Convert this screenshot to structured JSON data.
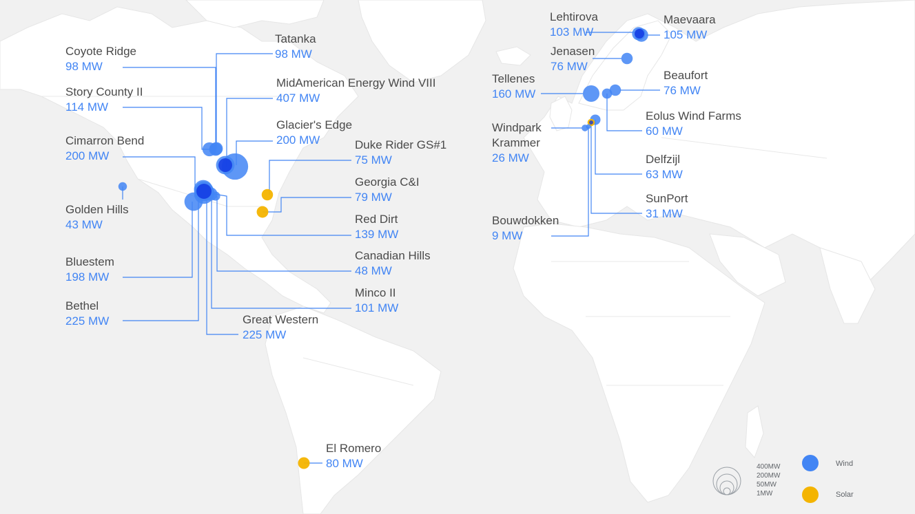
{
  "colors": {
    "wind": "#4285f4",
    "wind_dark": "#0b2fe0",
    "solar": "#f4b400",
    "land": "#ffffff",
    "water": "#f1f1f1",
    "line": "#4285f4"
  },
  "farms": [
    {
      "name": "Coyote Ridge",
      "mw": "98 MW",
      "type": "wind"
    },
    {
      "name": "Story County II",
      "mw": "114 MW",
      "type": "wind"
    },
    {
      "name": "Cimarron Bend",
      "mw": "200 MW",
      "type": "wind"
    },
    {
      "name": "Golden Hills",
      "mw": "43 MW",
      "type": "wind"
    },
    {
      "name": "Bluestem",
      "mw": "198 MW",
      "type": "wind"
    },
    {
      "name": "Bethel",
      "mw": "225 MW",
      "type": "wind"
    },
    {
      "name": "Tatanka",
      "mw": "98 MW",
      "type": "wind"
    },
    {
      "name": "MidAmerican Energy Wind VIII",
      "mw": "407 MW",
      "type": "wind"
    },
    {
      "name": "Glacier's Edge",
      "mw": "200 MW",
      "type": "wind"
    },
    {
      "name": "Duke Rider GS#1",
      "mw": "75 MW",
      "type": "solar"
    },
    {
      "name": "Georgia C&I",
      "mw": "79 MW",
      "type": "solar"
    },
    {
      "name": "Red Dirt",
      "mw": "139 MW",
      "type": "wind"
    },
    {
      "name": "Canadian Hills",
      "mw": "48 MW",
      "type": "wind"
    },
    {
      "name": "Minco II",
      "mw": "101 MW",
      "type": "wind"
    },
    {
      "name": "Great Western",
      "mw": "225 MW",
      "type": "wind"
    },
    {
      "name": "El Romero",
      "mw": "80 MW",
      "type": "solar"
    },
    {
      "name": "Lehtirova",
      "mw": "103 MW",
      "type": "wind"
    },
    {
      "name": "Maevaara",
      "mw": "105 MW",
      "type": "wind"
    },
    {
      "name": "Jenasen",
      "mw": "76 MW",
      "type": "wind"
    },
    {
      "name": "Tellenes",
      "mw": "160 MW",
      "type": "wind"
    },
    {
      "name": "Beaufort",
      "mw": "76 MW",
      "type": "wind"
    },
    {
      "name": "Eolus Wind Farms",
      "mw": "60 MW",
      "type": "wind"
    },
    {
      "name": "Windpark Krammer",
      "mw": "26 MW",
      "type": "wind"
    },
    {
      "name": "Delfzijl",
      "mw": "63 MW",
      "type": "wind"
    },
    {
      "name": "SunPort",
      "mw": "31 MW",
      "type": "solar"
    },
    {
      "name": "Bouwdokken",
      "mw": "9 MW",
      "type": "wind"
    }
  ],
  "legend": {
    "sizes": [
      "400MW",
      "200MW",
      "50MW",
      "1MW"
    ],
    "wind_label": "Wind",
    "solar_label": "Solar"
  }
}
